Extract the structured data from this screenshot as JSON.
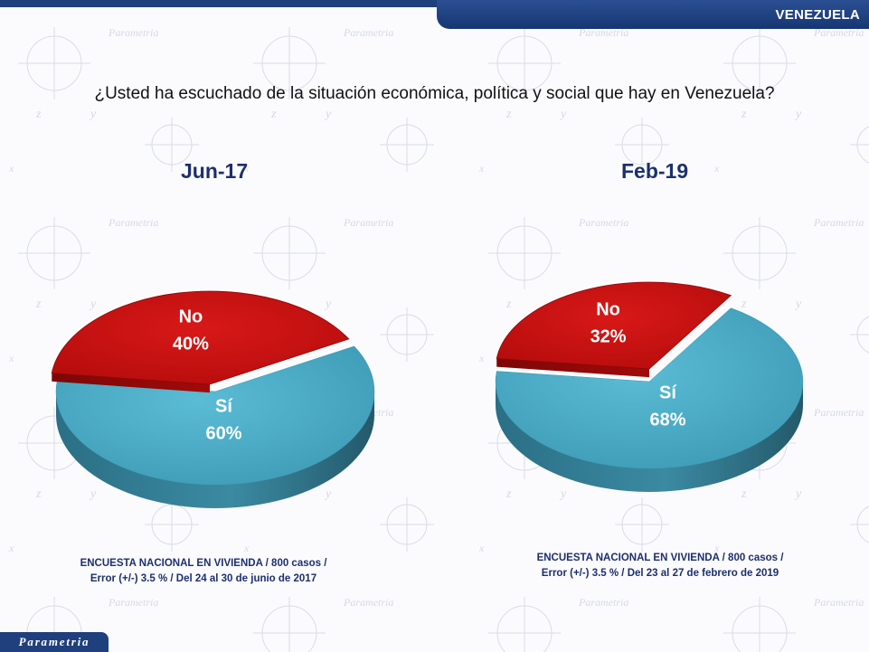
{
  "header": {
    "country": "VENEZUELA"
  },
  "question": "¿Usted ha escuchado de la situación económica, política y social que hay en Venezuela?",
  "brand": {
    "logo_text": "Parametria"
  },
  "colors": {
    "si": "#4aabc6",
    "no": "#c80f0f",
    "navy": "#1f3f7d"
  },
  "chart_data": [
    {
      "type": "pie",
      "title": "Jun-17",
      "slices": [
        {
          "label": "Sí",
          "value": 60,
          "value_text": "60%"
        },
        {
          "label": "No",
          "value": 40,
          "value_text": "40%"
        }
      ],
      "footnote": [
        "ENCUESTA NACIONAL EN VIVIENDA / 800 casos /",
        "Error (+/-) 3.5 % / Del 24 al 30 de junio de 2017"
      ]
    },
    {
      "type": "pie",
      "title": "Feb-19",
      "slices": [
        {
          "label": "Sí",
          "value": 68,
          "value_text": "68%"
        },
        {
          "label": "No",
          "value": 32,
          "value_text": "32%"
        }
      ],
      "footnote": [
        "ENCUESTA NACIONAL EN VIVIENDA / 800 casos /",
        "Error (+/-) 3.5 % / Del 23 al 27 de febrero de 2019"
      ]
    }
  ]
}
